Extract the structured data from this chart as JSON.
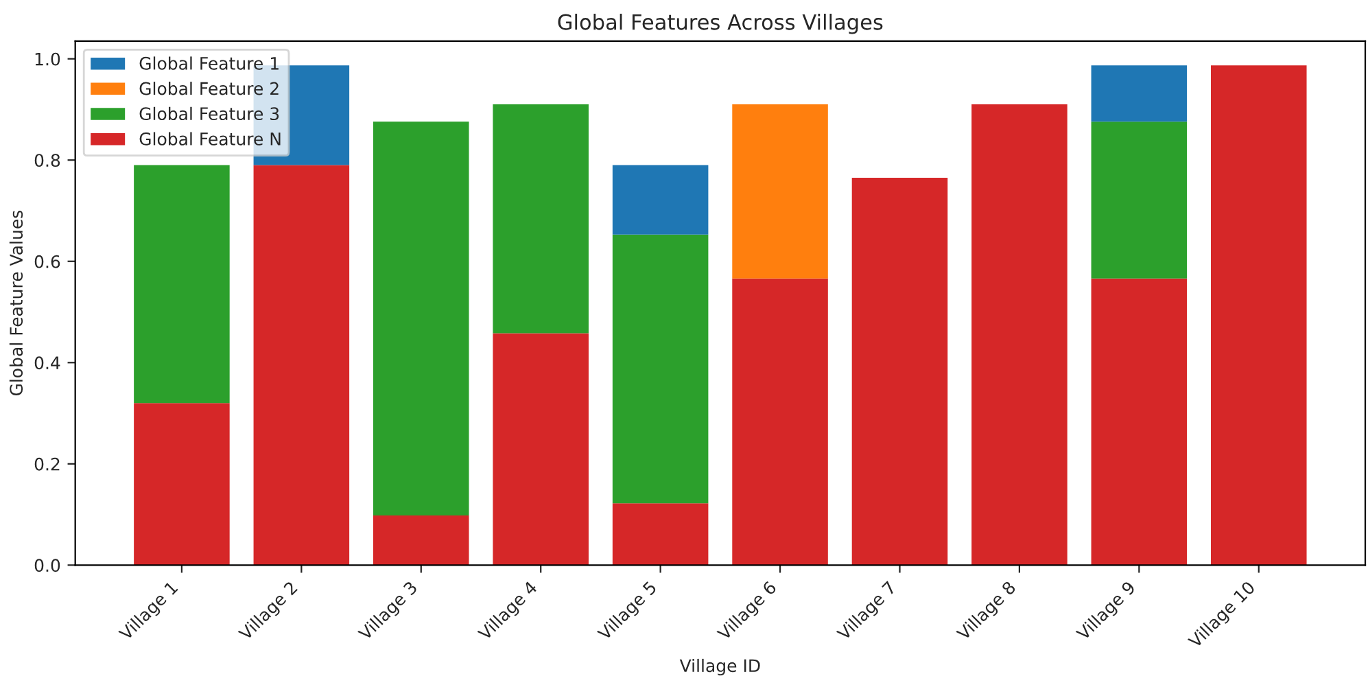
{
  "chart_data": {
    "type": "bar",
    "title": "Global Features Across Villages",
    "xlabel": "Village ID",
    "ylabel": "Global Feature Values",
    "categories": [
      "Village 1",
      "Village 2",
      "Village 3",
      "Village 4",
      "Village 5",
      "Village 6",
      "Village 7",
      "Village 8",
      "Village 9",
      "Village 10"
    ],
    "stacked": true,
    "series": [
      {
        "name": "Global Feature N",
        "color": "#d62728",
        "values": [
          0.32,
          0.79,
          0.098,
          0.458,
          0.122,
          0.566,
          0.765,
          0.91,
          0.566,
          0.987
        ]
      },
      {
        "name": "Global Feature 3",
        "color": "#2ca02c",
        "values": [
          0.47,
          null,
          0.778,
          0.452,
          0.531,
          null,
          null,
          null,
          0.31,
          null
        ]
      },
      {
        "name": "Global Feature 2",
        "color": "#ff7f0e",
        "values": [
          null,
          null,
          null,
          null,
          null,
          0.344,
          null,
          null,
          null,
          null
        ]
      },
      {
        "name": "Global Feature 1",
        "color": "#1f77b4",
        "values": [
          null,
          0.197,
          null,
          null,
          0.137,
          null,
          null,
          null,
          0.111,
          null
        ]
      }
    ],
    "ylim": [
      0,
      1.035
    ],
    "yticks": [
      {
        "value": 0,
        "label": "0.0"
      },
      0.2,
      0.4,
      0.6,
      0.8,
      {
        "value": 1,
        "label": "1.0"
      }
    ],
    "grid": false,
    "legend": "top left"
  }
}
